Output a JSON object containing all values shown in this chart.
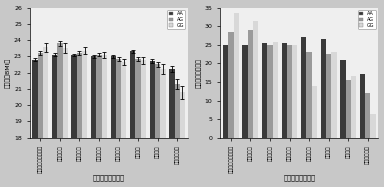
{
  "categories": [
    "ほとんど食べてない",
    "月１～３回",
    "週１～２回",
    "週３～４回",
    "週５～６回",
    "毎日１回",
    "毎日２回",
    "毎日３回以上"
  ],
  "bmi_AA": [
    22.8,
    23.1,
    23.1,
    23.0,
    23.0,
    23.3,
    22.7,
    22.2
  ],
  "bmi_AG": [
    23.2,
    23.8,
    23.2,
    23.1,
    22.85,
    22.85,
    22.5,
    21.3
  ],
  "bmi_GG": [
    23.55,
    23.5,
    23.35,
    23.1,
    22.65,
    22.75,
    22.2,
    20.8
  ],
  "bmi_err_AA": [
    0.08,
    0.08,
    0.07,
    0.08,
    0.09,
    0.1,
    0.13,
    0.18
  ],
  "bmi_err_AG": [
    0.12,
    0.15,
    0.1,
    0.1,
    0.11,
    0.12,
    0.18,
    0.3
  ],
  "bmi_err_GG": [
    0.28,
    0.3,
    0.2,
    0.18,
    0.18,
    0.2,
    0.3,
    0.4
  ],
  "obese_AA": [
    24.8,
    24.8,
    25.5,
    25.5,
    27.0,
    26.5,
    21.0,
    17.0
  ],
  "obese_AG": [
    28.5,
    29.0,
    25.0,
    25.0,
    23.0,
    22.5,
    15.5,
    12.0
  ],
  "obese_GG": [
    33.5,
    31.5,
    25.8,
    25.0,
    14.0,
    23.0,
    16.5,
    6.5
  ],
  "ylabel_left": "肥満度（BMI）",
  "ylabel_right": "肥満の割合（％）",
  "xlabel": "ニンジン摄取頻度",
  "ylim_left": [
    18,
    26
  ],
  "ylim_right": [
    0,
    35
  ],
  "yticks_left": [
    18,
    19,
    20,
    21,
    22,
    23,
    24,
    25,
    26
  ],
  "yticks_right": [
    0,
    5,
    10,
    15,
    20,
    25,
    30,
    35
  ],
  "color_AA": "#3a3a3a",
  "color_AG": "#9a9a9a",
  "color_GG": "#d8d8d8",
  "legend_labels": [
    "AA",
    "AG",
    "GG"
  ],
  "background_color": "#efefef",
  "fig_background": "#c8c8c8",
  "bar_width": 0.27,
  "figsize": [
    3.84,
    1.87
  ],
  "dpi": 100
}
